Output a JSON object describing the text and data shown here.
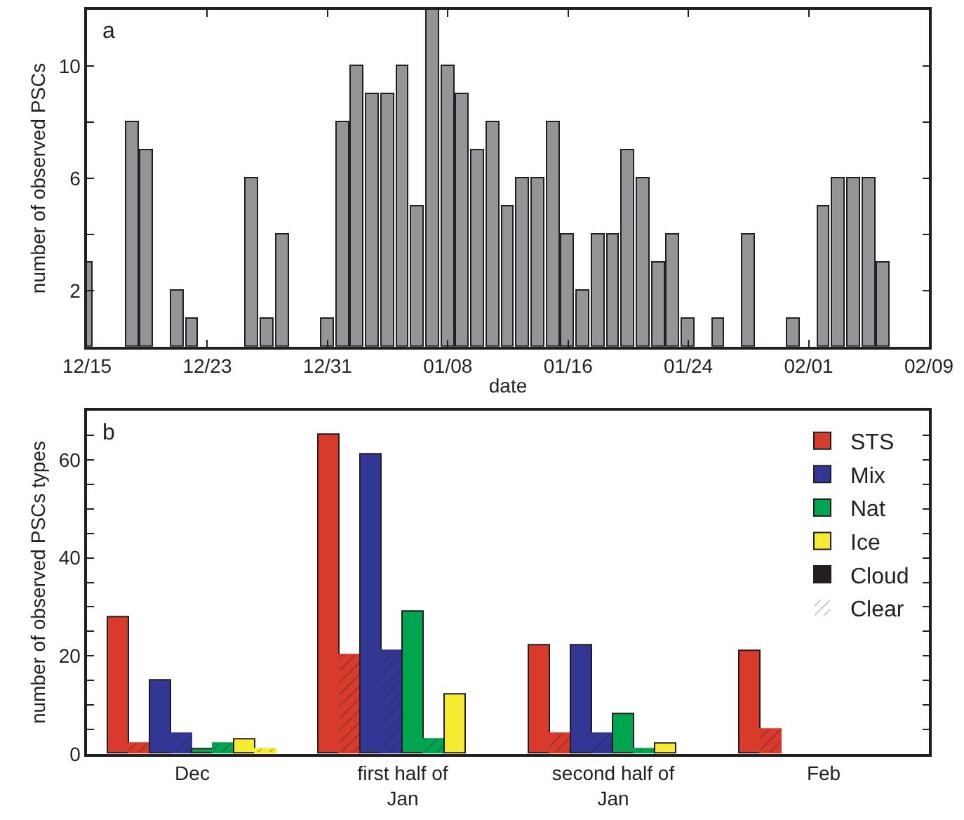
{
  "chart_data": [
    {
      "type": "bar",
      "annotations": [
        "a"
      ],
      "xlabel": "date",
      "ylabel": "number of observed PSCs",
      "color": "#939598",
      "categories": [
        "12/15",
        null,
        null,
        null,
        null,
        null,
        null,
        null,
        "12/23",
        null,
        null,
        null,
        null,
        null,
        null,
        null,
        "12/31",
        null,
        null,
        null,
        null,
        null,
        null,
        null,
        "01/08",
        null,
        null,
        null,
        null,
        null,
        null,
        null,
        "01/16",
        null,
        null,
        null,
        null,
        null,
        null,
        null,
        "01/24",
        null,
        null,
        null,
        null,
        null,
        null,
        null,
        "02/01",
        null,
        null,
        null,
        null,
        null,
        null,
        null,
        "02/09"
      ],
      "values": [
        3,
        null,
        null,
        8,
        7,
        null,
        2,
        1,
        null,
        null,
        null,
        6,
        1,
        4,
        null,
        null,
        1,
        8,
        10,
        9,
        9,
        10,
        5,
        12,
        10,
        9,
        7,
        8,
        5,
        6,
        6,
        8,
        4,
        2,
        4,
        4,
        7,
        6,
        3,
        4,
        1,
        null,
        1,
        null,
        4,
        null,
        null,
        1,
        null,
        5,
        6,
        6,
        6,
        3,
        null,
        null,
        null
      ],
      "ylim": [
        0,
        12
      ],
      "yticks": [
        2,
        {
          "value": 4,
          "label": null
        },
        6,
        {
          "value": 8,
          "label": null
        },
        10
      ]
    },
    {
      "type": "bar",
      "annotations": [
        "b"
      ],
      "ylabel": "number of observed PSCs types",
      "legend": "top right",
      "categories": [
        "Dec",
        "first half of\nJan",
        "second half of\nJan",
        "Feb"
      ],
      "series": [
        {
          "name": "STS",
          "color": "#d83b2b",
          "values": [
            28,
            65,
            22,
            21
          ]
        },
        {
          "color": "#d83b2b",
          "values": [
            2,
            20,
            4,
            5
          ]
        },
        {
          "name": "Mix",
          "color": "#323795",
          "values": [
            15,
            61,
            22,
            null
          ]
        },
        {
          "color": "#323795",
          "values": [
            4,
            21,
            4,
            null
          ]
        },
        {
          "name": "Nat",
          "color": "#00a54f",
          "values": [
            1,
            29,
            8,
            null
          ]
        },
        {
          "color": "#00a54f",
          "values": [
            2,
            3,
            1,
            null
          ]
        },
        {
          "name": "Ice",
          "color": "#f7ea33",
          "values": [
            3,
            12,
            2,
            null
          ]
        },
        {
          "color": "#f7ea33",
          "values": [
            1,
            null,
            null,
            null
          ]
        },
        {
          "name": "Cloud",
          "color": "#231f20",
          "values": [
            null,
            null,
            null,
            null
          ]
        },
        {
          "name": "Clear",
          "color": "#ffffff",
          "values": [
            null,
            null,
            null,
            null
          ]
        }
      ],
      "ylim": [
        0,
        70
      ],
      "yticks": [
        0,
        {
          "value": 5,
          "label": null
        },
        {
          "value": 10,
          "label": null
        },
        {
          "value": 15,
          "label": null
        },
        20,
        {
          "value": 25,
          "label": null
        },
        {
          "value": 30,
          "label": null
        },
        {
          "value": 35,
          "label": null
        },
        40,
        {
          "value": 45,
          "label": null
        },
        {
          "value": 50,
          "label": null
        },
        {
          "value": 55,
          "label": null
        },
        60,
        {
          "value": 65,
          "label": null
        }
      ]
    }
  ]
}
